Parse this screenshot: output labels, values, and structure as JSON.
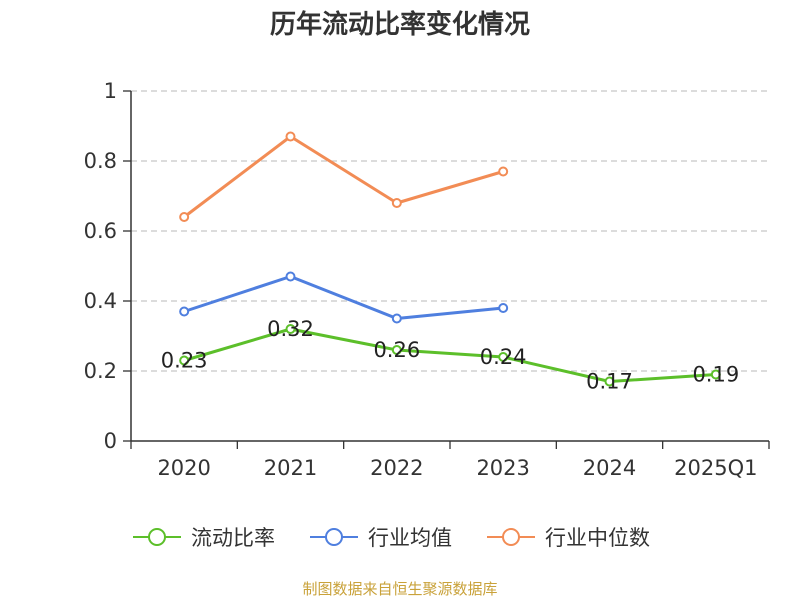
{
  "title": "历年流动比率变化情况",
  "source": "制图数据来自恒生聚源数据库",
  "colors": {
    "current_ratio": "#5cbf2a",
    "industry_avg": "#4f7fdf",
    "industry_median": "#f28c55",
    "source_text": "#c9a23a",
    "grid": "#c8c8c8",
    "axis": "#333333"
  },
  "legend": {
    "current_ratio": "流动比率",
    "industry_avg": "行业均值",
    "industry_median": "行业中位数"
  },
  "chart_data": {
    "type": "line",
    "title": "历年流动比率变化情况",
    "xlabel": "",
    "ylabel": "",
    "categories": [
      "2020",
      "2021",
      "2022",
      "2023",
      "2024",
      "2025Q1"
    ],
    "ylim": [
      0,
      1
    ],
    "yticks": [
      "0",
      "0.2",
      "0.4",
      "0.6",
      "0.8",
      "1"
    ],
    "grid": true,
    "legend_position": "bottom",
    "series": [
      {
        "name": "流动比率",
        "key": "current_ratio",
        "values": [
          0.23,
          0.32,
          0.26,
          0.24,
          0.17,
          0.19
        ],
        "labels": [
          "0.23",
          "0.32",
          "0.26",
          "0.24",
          "0.17",
          "0.19"
        ]
      },
      {
        "name": "行业均值",
        "key": "industry_avg",
        "values": [
          0.37,
          0.47,
          0.35,
          0.38,
          null,
          null
        ]
      },
      {
        "name": "行业中位数",
        "key": "industry_median",
        "values": [
          0.64,
          0.87,
          0.68,
          0.77,
          null,
          null
        ]
      }
    ]
  }
}
